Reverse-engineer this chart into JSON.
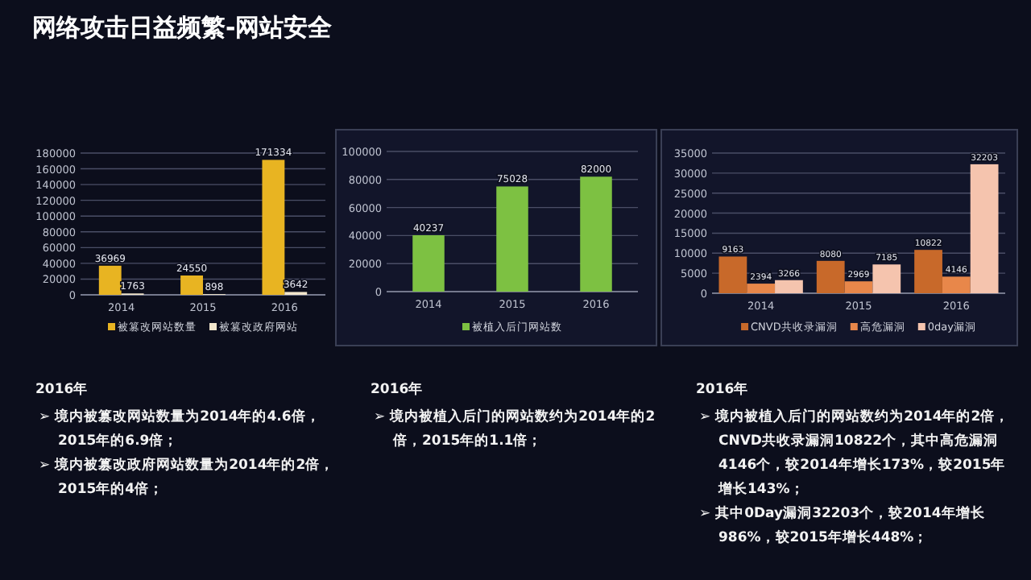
{
  "chart_data": [
    {
      "type": "bar",
      "title": "网络攻击日益频繁-网站安全",
      "categories": [
        "2014",
        "2015",
        "2016"
      ],
      "series": [
        {
          "name": "被篡改网站数量",
          "color": "#e8b422",
          "values": [
            36969,
            24550,
            171334
          ]
        },
        {
          "name": "被篡改政府网站",
          "color": "#f2e6cc",
          "values": [
            1763,
            898,
            3642
          ]
        }
      ],
      "ylim": [
        0,
        180000
      ],
      "yticks": [
        0,
        20000,
        40000,
        60000,
        80000,
        100000,
        120000,
        140000,
        160000,
        180000
      ],
      "grid": "y",
      "data_labels": true,
      "legend": "bottom",
      "annotations": [
        "2016年",
        "➢ 境内被篡改网站数量为2014年的4.6倍，2015年的6.9倍；",
        "➢ 境内被篡改政府网站数量为2014年的2倍，2015年的4倍；"
      ]
    },
    {
      "type": "bar",
      "categories": [
        "2014",
        "2015",
        "2016"
      ],
      "series": [
        {
          "name": "被植入后门网站数",
          "color": "#7dc142",
          "values": [
            40237,
            75028,
            82000
          ]
        }
      ],
      "ylim": [
        0,
        100000
      ],
      "yticks": [
        0,
        20000,
        40000,
        60000,
        80000,
        100000
      ],
      "grid": "y",
      "data_labels": true,
      "legend": "bottom",
      "annotations": [
        "2016年",
        "➢ 境内被植入后门的网站数约为2014年的2倍，2015年的1.1倍；"
      ]
    },
    {
      "type": "bar",
      "categories": [
        "2014",
        "2015",
        "2016"
      ],
      "series": [
        {
          "name": "CNVD共收录漏洞",
          "color": "#c8692a",
          "values": [
            9163,
            8080,
            10822
          ]
        },
        {
          "name": "高危漏洞",
          "color": "#e8874a",
          "values": [
            2394,
            2969,
            4146
          ]
        },
        {
          "name": "0day漏洞",
          "color": "#f5c4ae",
          "values": [
            3266,
            7185,
            32203
          ]
        }
      ],
      "ylim": [
        0,
        35000
      ],
      "yticks": [
        0,
        5000,
        10000,
        15000,
        20000,
        25000,
        30000,
        35000
      ],
      "grid": "y",
      "data_labels": true,
      "legend": "bottom",
      "annotations": [
        "2016年",
        "➢ 境内被植入后门的网站数约为2014年的2倍，CNVD共收录漏洞10822个，其中高危漏洞4146个，较2014年增长173%，较2015年增长143%；",
        "➢ 其中0Day漏洞32203个，较2014年增长986%，较2015年增长448%；"
      ]
    }
  ]
}
